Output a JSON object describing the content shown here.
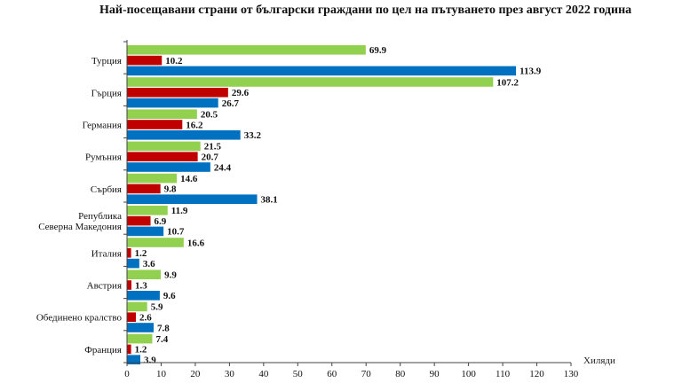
{
  "chart_data": {
    "type": "bar",
    "orientation": "horizontal",
    "title": "Най-посещавани страни от български граждани по цел на пътуването през август 2022 година",
    "xlabel": "Хиляди",
    "ylabel": "",
    "xlim": [
      0,
      130
    ],
    "xticks": [
      0,
      10,
      20,
      30,
      40,
      50,
      60,
      70,
      80,
      90,
      100,
      110,
      120,
      130
    ],
    "grid": false,
    "legend": "none",
    "categories": [
      "Турция",
      "Гърция",
      "Германия",
      "Румъния",
      "Сърбия",
      "Република Северна Македония",
      "Италия",
      "Австрия",
      "Обединено кралство",
      "Франция"
    ],
    "category_lines": [
      [
        "Турция"
      ],
      [
        "Гърция"
      ],
      [
        "Германия"
      ],
      [
        "Румъния"
      ],
      [
        "Сърбия"
      ],
      [
        "Република",
        "Северна Македония"
      ],
      [
        "Италия"
      ],
      [
        "Австрия"
      ],
      [
        "Обединено кралство"
      ],
      [
        "Франция"
      ]
    ],
    "series": [
      {
        "color": "#92d050",
        "values": [
          69.9,
          107.2,
          20.5,
          21.5,
          14.6,
          11.9,
          16.6,
          9.9,
          5.9,
          7.4
        ],
        "labels": [
          "69.9",
          "107.2",
          "20.5",
          "21.5",
          "14.6",
          "11.9",
          "16.6",
          "9.9",
          "5.9",
          "7.4"
        ]
      },
      {
        "color": "#c00000",
        "values": [
          10.2,
          29.6,
          16.2,
          20.7,
          9.8,
          6.9,
          1.2,
          1.3,
          2.6,
          1.2
        ],
        "labels": [
          "10.2",
          "29.6",
          "16.2",
          "20.7",
          "9.8",
          "6.9",
          "1.2",
          "1.3",
          "2.6",
          "1.2"
        ]
      },
      {
        "color": "#0070c0",
        "values": [
          113.9,
          26.7,
          33.2,
          24.4,
          38.1,
          10.7,
          3.6,
          9.6,
          7.8,
          3.9
        ],
        "labels": [
          "113.9",
          "26.7",
          "33.2",
          "24.4",
          "38.1",
          "10.7",
          "3.6",
          "9.6",
          "7.8",
          "3.9"
        ]
      }
    ]
  }
}
